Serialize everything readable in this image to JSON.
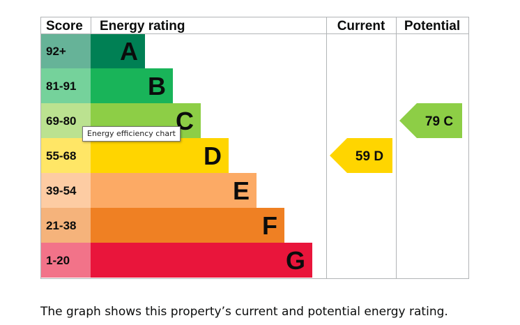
{
  "chart_data": {
    "type": "bar",
    "headers": {
      "score": "Score",
      "rating": "Energy rating",
      "current": "Current",
      "potential": "Potential"
    },
    "bands": [
      {
        "letter": "A",
        "range": "92+",
        "color": "#008054",
        "score_bg": "#66b398"
      },
      {
        "letter": "B",
        "range": "81-91",
        "color": "#19b459",
        "score_bg": "#75d29b"
      },
      {
        "letter": "C",
        "range": "69-80",
        "color": "#8dce46",
        "score_bg": "#bbe290"
      },
      {
        "letter": "D",
        "range": "55-68",
        "color": "#ffd500",
        "score_bg": "#ffe666"
      },
      {
        "letter": "E",
        "range": "39-54",
        "color": "#fcaa65",
        "score_bg": "#fdcca3"
      },
      {
        "letter": "F",
        "range": "21-38",
        "color": "#ef8023",
        "score_bg": "#f5b37b"
      },
      {
        "letter": "G",
        "range": "1-20",
        "color": "#e9153b",
        "score_bg": "#f27389"
      }
    ],
    "current": {
      "value": 59,
      "band": "D",
      "label": "59 D",
      "color": "#ffd500"
    },
    "potential": {
      "value": 79,
      "band": "C",
      "label": "79 C",
      "color": "#8dce46"
    }
  },
  "tooltip": "Energy efficiency chart",
  "caption": "The graph shows this property’s current and potential energy rating."
}
